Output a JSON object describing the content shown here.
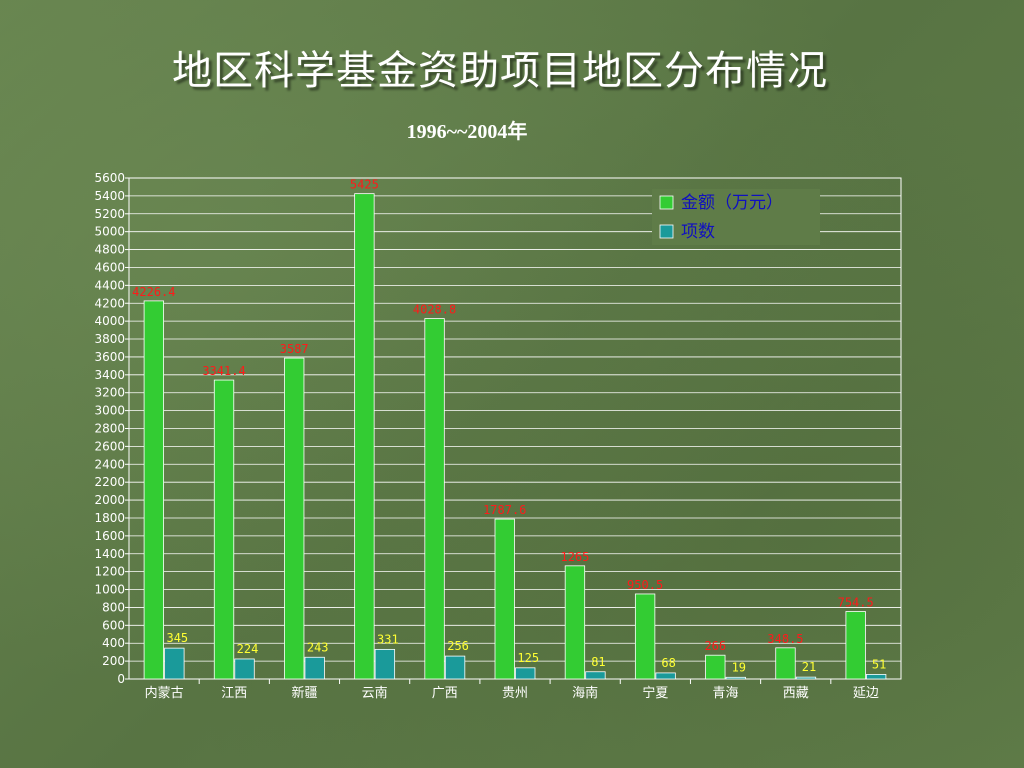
{
  "title": "地区科学基金资助项目地区分布情况",
  "subtitle": "1996~~2004年",
  "chart_data": {
    "type": "bar",
    "categories": [
      "内蒙古",
      "江西",
      "新疆",
      "云南",
      "广西",
      "贵州",
      "海南",
      "宁夏",
      "青海",
      "西藏",
      "延边"
    ],
    "series": [
      {
        "name": "金额（万元）",
        "values": [
          4226.4,
          3341.4,
          3587,
          5425,
          4028.8,
          1787.6,
          1265,
          950.5,
          266,
          348.5,
          754.5
        ],
        "color": "#33cc33",
        "label_color": "#ff1a1a"
      },
      {
        "name": "项数",
        "values": [
          345,
          224,
          243,
          331,
          256,
          125,
          81,
          68,
          19,
          21,
          51
        ],
        "color": "#1a9a9a",
        "label_color": "#ffff33"
      }
    ],
    "value_labels": [
      [
        "4226.4",
        "3341.4",
        "3587",
        "5425",
        "4028.8",
        "1787.6",
        "1265",
        "950.5",
        "266",
        "348.5",
        "754.5"
      ],
      [
        "345",
        "224",
        "243",
        "331",
        "256",
        "125",
        "81",
        "68",
        "19",
        "21",
        "51"
      ]
    ],
    "ylim": [
      0,
      5600
    ],
    "ytick_step": 200,
    "grid": true,
    "legend_position": "top-right",
    "xlabel": "",
    "ylabel": ""
  }
}
